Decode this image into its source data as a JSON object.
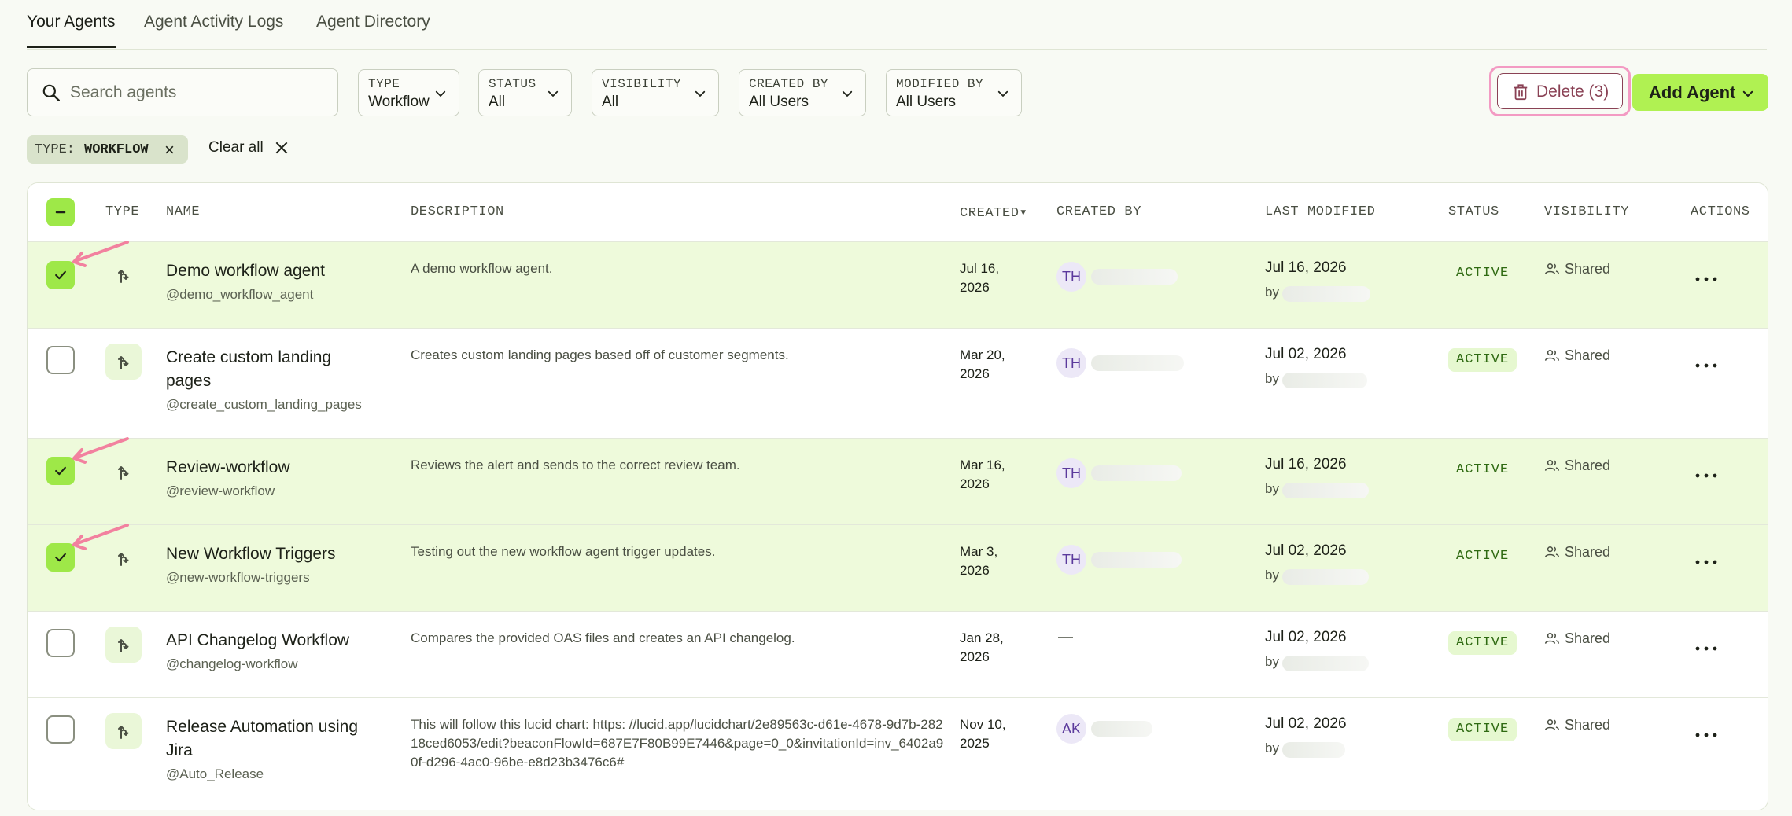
{
  "tabs": [
    {
      "label": "Your Agents",
      "active": true
    },
    {
      "label": "Agent Activity Logs",
      "active": false
    },
    {
      "label": "Agent Directory",
      "active": false
    }
  ],
  "search": {
    "placeholder": "Search agents",
    "value": ""
  },
  "filters": [
    {
      "label": "TYPE",
      "value": "Workflow"
    },
    {
      "label": "STATUS",
      "value": "All"
    },
    {
      "label": "VISIBILITY",
      "value": "All"
    },
    {
      "label": "CREATED BY",
      "value": "All Users"
    },
    {
      "label": "MODIFIED BY",
      "value": "All Users"
    }
  ],
  "toolbar": {
    "delete_label": "Delete (3)",
    "add_label": "Add Agent"
  },
  "active_chips": [
    {
      "key": "TYPE:",
      "value": "WORKFLOW"
    }
  ],
  "clear_all_label": "Clear all",
  "table": {
    "columns": [
      "TYPE",
      "NAME",
      "DESCRIPTION",
      "CREATED",
      "CREATED BY",
      "LAST MODIFIED",
      "STATUS",
      "VISIBILITY",
      "ACTIONS"
    ],
    "sort_indicator": "▾",
    "rows": [
      {
        "selected": true,
        "name": "Demo workflow agent",
        "handle": "@demo_workflow_agent",
        "description": "A demo workflow agent.",
        "created": "Jul 16, 2026",
        "creator_initials": "TH",
        "modified_date": "Jul 16, 2026",
        "modified_by": "by",
        "status": "ACTIVE",
        "visibility": "Shared"
      },
      {
        "selected": false,
        "name": "Create custom landing pages",
        "handle": "@create_custom_landing_pages",
        "description": "Creates custom landing pages based off of customer segments.",
        "created": "Mar 20, 2026",
        "creator_initials": "TH",
        "modified_date": "Jul 02, 2026",
        "modified_by": "by",
        "status": "ACTIVE",
        "visibility": "Shared"
      },
      {
        "selected": true,
        "name": "Review-workflow",
        "handle": "@review-workflow",
        "description": "Reviews the alert and sends to the correct review team.",
        "created": "Mar 16, 2026",
        "creator_initials": "TH",
        "modified_date": "Jul 16, 2026",
        "modified_by": "by",
        "status": "ACTIVE",
        "visibility": "Shared"
      },
      {
        "selected": true,
        "name": "New Workflow Triggers",
        "handle": "@new-workflow-triggers",
        "description": "Testing out the new workflow agent trigger updates.",
        "created": "Mar 3, 2026",
        "creator_initials": "TH",
        "modified_date": "Jul 02, 2026",
        "modified_by": "by",
        "status": "ACTIVE",
        "visibility": "Shared"
      },
      {
        "selected": false,
        "name": "API Changelog Workflow",
        "handle": "@changelog-workflow",
        "description": "Compares the provided OAS files and creates an API changelog.",
        "created": "Jan 28, 2026",
        "creator_initials": "—",
        "modified_date": "Jul 02, 2026",
        "modified_by": "by",
        "status": "ACTIVE",
        "visibility": "Shared"
      },
      {
        "selected": false,
        "name": "Release Automation using Jira",
        "handle": "@Auto_Release",
        "description": "This will follow this lucid chart: https: //lucid.app/lucidchart/2e89563c-d61e-4678-9d7b-28218ced6053/edit?beaconFlowId=687E7F80B99E7446&page=0_0&invitationId=inv_6402a90f-d296-4ac0-96be-e8d23b3476c6#",
        "created": "Nov 10, 2025",
        "creator_initials": "AK",
        "modified_date": "Jul 02, 2026",
        "modified_by": "by",
        "status": "ACTIVE",
        "visibility": "Shared"
      }
    ]
  },
  "colors": {
    "accent_green": "#b0f152",
    "selected_row": "#eefadb",
    "delete_outline": "#f39ac3",
    "status_green": "#2f6a12"
  },
  "icons": [
    "search-icon",
    "chevron-down-icon",
    "trash-icon",
    "close-icon",
    "workflow-branch-icon",
    "users-icon",
    "more-horizontal-icon",
    "check-icon",
    "minus-icon"
  ]
}
